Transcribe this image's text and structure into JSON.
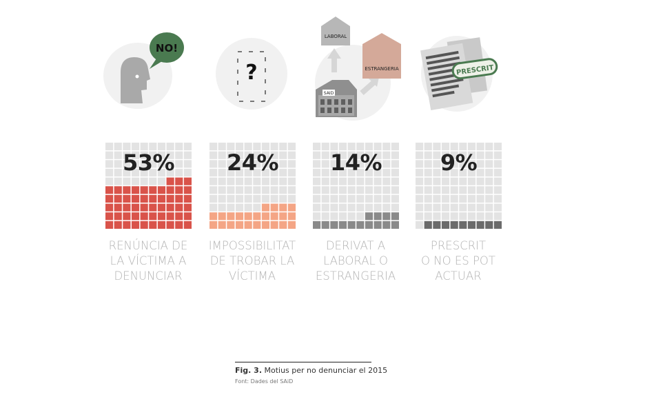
{
  "chart_data": {
    "type": "waffle",
    "units": "%",
    "categories": [
      [
        "RENÚNCIA DE",
        "LA VÍCTIMA A",
        "DENUNCIAR"
      ],
      [
        "IMPOSSIBILITAT",
        "DE TROBAR LA",
        "VÍCTIMA"
      ],
      [
        "DERIVAT A",
        "LABORAL O",
        "ESTRANGERIA"
      ],
      [
        "PRESCRIT",
        "O NO ES POT",
        "ACTUAR"
      ]
    ],
    "values": [
      53,
      24,
      14,
      9
    ],
    "value_labels": [
      "53%",
      "24%",
      "14%",
      "9%"
    ],
    "grid": "10x10",
    "colors": [
      "#d9534a",
      "#f4a585",
      "#8a8a8a",
      "#6b6b6b"
    ]
  },
  "icons": {
    "speech_bubble_text": "NO!",
    "question_mark": "?",
    "house_top_label": "LABORAL",
    "house_right_label": "ESTRANGERIA",
    "house_bottom_label": "SAID",
    "stamp_text": "PRESCRIT"
  },
  "caption": {
    "figure_label": "Fig. 3.",
    "title": "Motius per no denunciar el 2015",
    "source": "Font: Dades del SAiD"
  },
  "style": {
    "grid_bg": "#e3e3e3",
    "label_color": "#b3b3b3"
  }
}
